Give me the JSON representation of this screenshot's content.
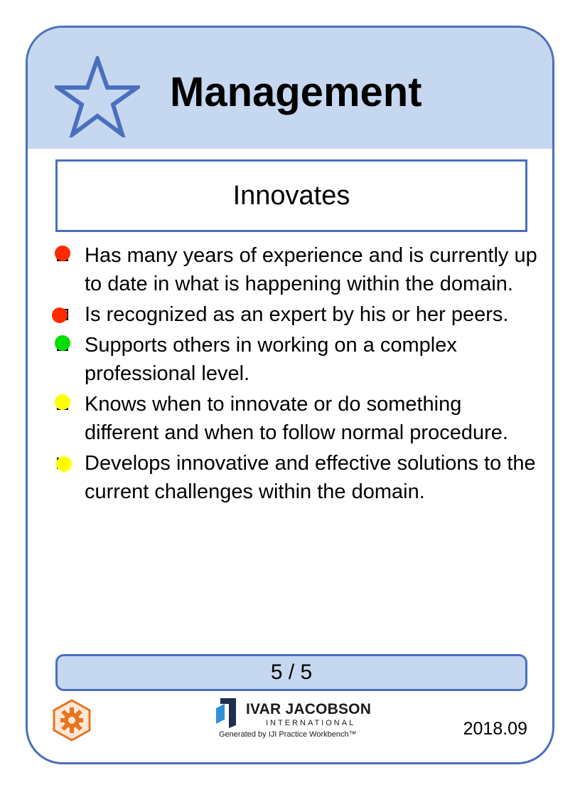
{
  "card": {
    "alpha_name": "Management",
    "level_name": "Innovates",
    "checklist": [
      {
        "text": "Has many years of experience and is currently up to date in what is happening within the domain.",
        "color": "#ff2a00"
      },
      {
        "text": "Is recognized as an expert by his or her peers.",
        "color": "#ff2a00"
      },
      {
        "text": "Supports others in working on a complex professional level.",
        "color": "#00dd00"
      },
      {
        "text": "Knows when to innovate or do something different and when to follow normal procedure.",
        "color": "#ffff00"
      },
      {
        "text": "Develops innovative and effective solutions to the current challenges within the domain.",
        "color": "#ffff00"
      }
    ],
    "progress": "5 / 5",
    "version": "2018.09"
  },
  "logo": {
    "company": "IVAR JACOBSON",
    "subtitle": "INTERNATIONAL",
    "generated_by": "Generated by IJI Practice Workbench™"
  },
  "colors": {
    "accent": "#4a6fbf",
    "header_fill": "#c6d7f0",
    "gear": "#e9731e"
  },
  "icons": {
    "alpha": "star-icon",
    "footer": "gear-icon"
  }
}
